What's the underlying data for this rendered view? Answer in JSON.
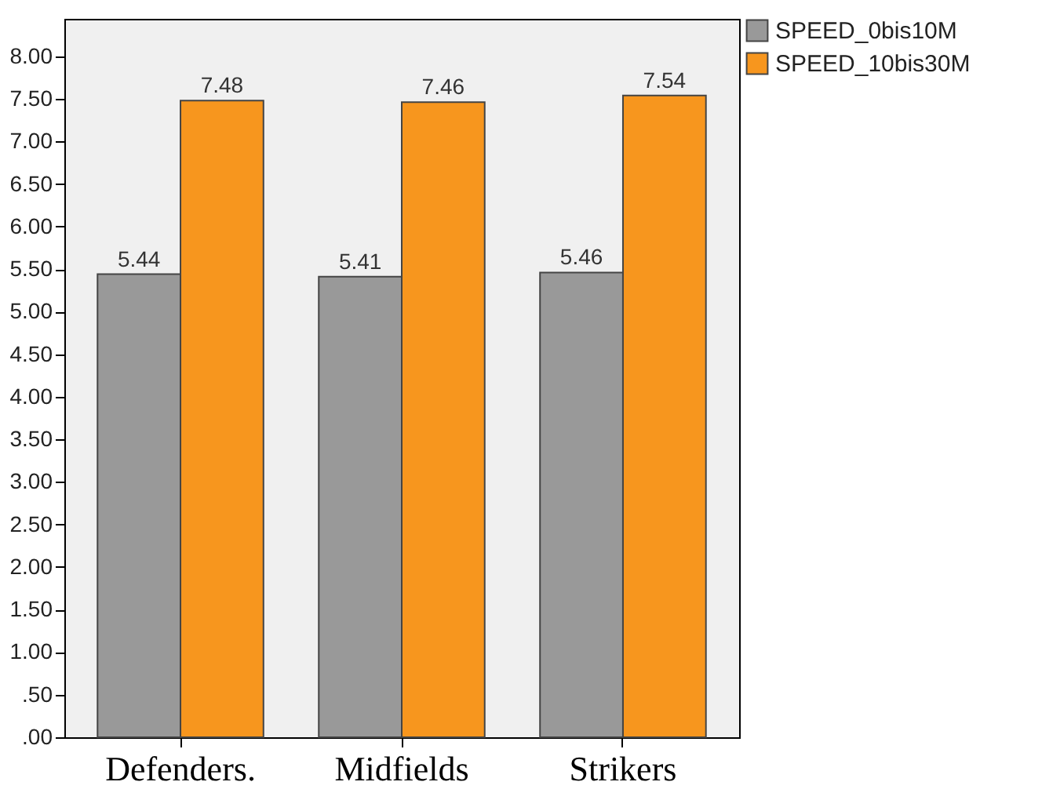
{
  "chart_data": {
    "type": "bar",
    "categories": [
      "Defenders.",
      "Midfields",
      "Strikers"
    ],
    "series": [
      {
        "name": "SPEED_0bis10M",
        "color": "#999999",
        "values": [
          5.44,
          5.41,
          5.46
        ]
      },
      {
        "name": "SPEED_10bis30M",
        "color": "#f7961e",
        "values": [
          7.48,
          7.46,
          7.54
        ]
      }
    ],
    "ylim": [
      0,
      8.44
    ],
    "yticks": [
      {
        "value": 0,
        "label": ".00"
      },
      {
        "value": 0.5,
        "label": ".50"
      },
      {
        "value": 1,
        "label": "1.00"
      },
      {
        "value": 1.5,
        "label": "1.50"
      },
      {
        "value": 2,
        "label": "2.00"
      },
      {
        "value": 2.5,
        "label": "2.50"
      },
      {
        "value": 3,
        "label": "3.00"
      },
      {
        "value": 3.5,
        "label": "3.50"
      },
      {
        "value": 4,
        "label": "4.00"
      },
      {
        "value": 4.5,
        "label": "4.50"
      },
      {
        "value": 5,
        "label": "5.00"
      },
      {
        "value": 5.5,
        "label": "5.50"
      },
      {
        "value": 6,
        "label": "6.00"
      },
      {
        "value": 6.5,
        "label": "6.50"
      },
      {
        "value": 7,
        "label": "7.00"
      },
      {
        "value": 7.5,
        "label": "7.50"
      },
      {
        "value": 8,
        "label": "8.00"
      }
    ],
    "data_labels": true,
    "legend": "top right",
    "grid": false
  }
}
